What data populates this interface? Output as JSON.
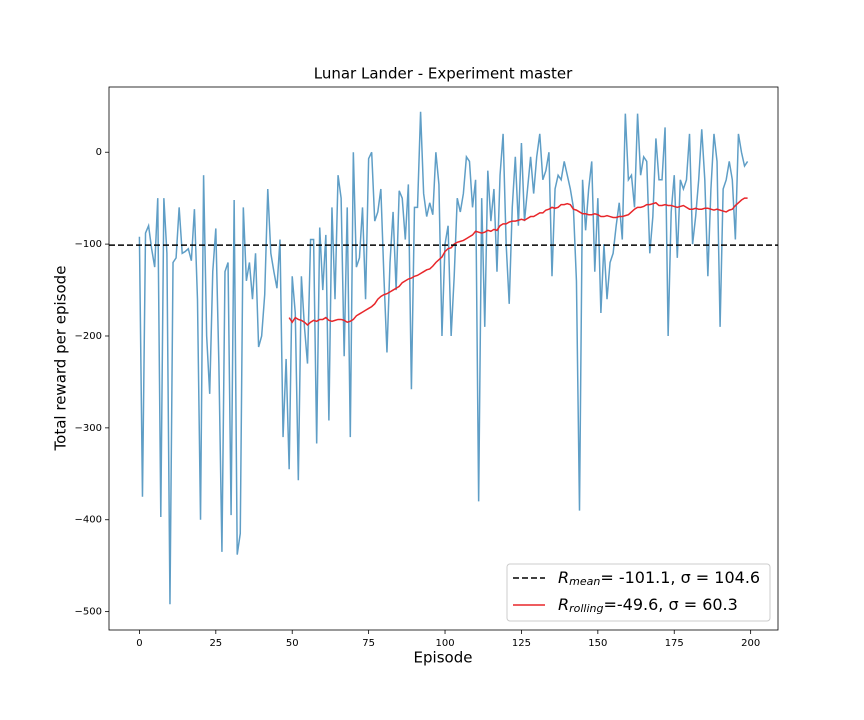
{
  "chart_data": {
    "type": "line",
    "title": "Lunar Lander - Experiment  master",
    "xlabel": "Episode",
    "ylabel": "Total reward per episode",
    "x": [
      0,
      1,
      2,
      3,
      4,
      5,
      6,
      7,
      8,
      9,
      10,
      11,
      12,
      13,
      14,
      15,
      16,
      17,
      18,
      19,
      20,
      21,
      22,
      23,
      24,
      25,
      26,
      27,
      28,
      29,
      30,
      31,
      32,
      33,
      34,
      35,
      36,
      37,
      38,
      39,
      40,
      41,
      42,
      43,
      44,
      45,
      46,
      47,
      48,
      49,
      50,
      51,
      52,
      53,
      54,
      55,
      56,
      57,
      58,
      59,
      60,
      61,
      62,
      63,
      64,
      65,
      66,
      67,
      68,
      69,
      70,
      71,
      72,
      73,
      74,
      75,
      76,
      77,
      78,
      79,
      80,
      81,
      82,
      83,
      84,
      85,
      86,
      87,
      88,
      89,
      90,
      91,
      92,
      93,
      94,
      95,
      96,
      97,
      98,
      99,
      100,
      101,
      102,
      103,
      104,
      105,
      106,
      107,
      108,
      109,
      110,
      111,
      112,
      113,
      114,
      115,
      116,
      117,
      118,
      119,
      120,
      121,
      122,
      123,
      124,
      125,
      126,
      127,
      128,
      129,
      130,
      131,
      132,
      133,
      134,
      135,
      136,
      137,
      138,
      139,
      140,
      141,
      142,
      143,
      144,
      145,
      146,
      147,
      148,
      149,
      150,
      151,
      152,
      153,
      154,
      155,
      156,
      157,
      158,
      159,
      160,
      161,
      162,
      163,
      164,
      165,
      166,
      167,
      168,
      169,
      170,
      171,
      172,
      173,
      174,
      175,
      176,
      177,
      178,
      179,
      180,
      181,
      182,
      183,
      184,
      185,
      186,
      187,
      188,
      189,
      190,
      191,
      192,
      193,
      194,
      195,
      196,
      197,
      198,
      199
    ],
    "series": [
      {
        "color": "#5f9ec6",
        "values": [
          -92,
          -375,
          -88,
          -80,
          -105,
          -125,
          -50,
          -397,
          -50,
          -110,
          -492,
          -120,
          -115,
          -60,
          -110,
          -108,
          -105,
          -118,
          -62,
          -160,
          -400,
          -25,
          -200,
          -263,
          -130,
          -83,
          -230,
          -435,
          -130,
          -120,
          -395,
          -52,
          -438,
          -415,
          -60,
          -140,
          -120,
          -160,
          -110,
          -212,
          -200,
          -155,
          -40,
          -110,
          -130,
          -148,
          -95,
          -310,
          -225,
          -345,
          -135,
          -175,
          -357,
          -135,
          -190,
          -230,
          -95,
          -95,
          -317,
          -82,
          -150,
          -90,
          -292,
          -60,
          -160,
          -25,
          -50,
          -222,
          -60,
          -310,
          0,
          -125,
          -115,
          -60,
          -160,
          -7,
          0,
          -75,
          -65,
          -40,
          -135,
          -218,
          -120,
          -65,
          -150,
          -42,
          -50,
          -95,
          -35,
          -258,
          -60,
          -60,
          44,
          -45,
          -70,
          -55,
          -68,
          0,
          -35,
          -200,
          -100,
          -80,
          -200,
          -135,
          -50,
          -65,
          -45,
          -5,
          -10,
          -60,
          -30,
          -380,
          -50,
          -190,
          -20,
          -75,
          -40,
          -130,
          -25,
          20,
          -100,
          -165,
          -60,
          -5,
          -80,
          10,
          -75,
          -40,
          -5,
          -45,
          -5,
          20,
          -30,
          -20,
          0,
          -135,
          -40,
          -25,
          -30,
          -10,
          -25,
          -40,
          -60,
          -140,
          -390,
          -30,
          -85,
          -40,
          -10,
          -130,
          -50,
          -175,
          -100,
          -160,
          -120,
          -110,
          -80,
          -55,
          -95,
          42,
          -30,
          -25,
          -60,
          42,
          -25,
          -5,
          -10,
          -110,
          -70,
          15,
          -30,
          -30,
          27,
          -200,
          -65,
          -25,
          -115,
          -30,
          -40,
          -30,
          20,
          -100,
          -70,
          -30,
          25,
          -30,
          -135,
          -40,
          20,
          -10,
          -190,
          -40,
          -30,
          -10,
          -30,
          -95,
          20,
          0,
          -15,
          -10
        ]
      },
      {
        "name": "R",
        "name_sub": "rolling",
        "name_rest": "=-49.6, σ = 60.3",
        "color": "#e8262a",
        "values": [
          null,
          null,
          null,
          null,
          null,
          null,
          null,
          null,
          null,
          null,
          null,
          null,
          null,
          null,
          null,
          null,
          null,
          null,
          null,
          null,
          null,
          null,
          null,
          null,
          null,
          null,
          null,
          null,
          null,
          null,
          null,
          null,
          null,
          null,
          null,
          null,
          null,
          null,
          null,
          null,
          null,
          null,
          null,
          null,
          null,
          null,
          null,
          null,
          null,
          -180,
          -185,
          -180,
          -182,
          -183,
          -185,
          -188,
          -185,
          -183,
          -184,
          -182,
          -182,
          -180,
          -183,
          -184,
          -183,
          -182,
          -182,
          -183,
          -185,
          -184,
          -182,
          -178,
          -176,
          -174,
          -172,
          -170,
          -168,
          -165,
          -160,
          -157,
          -155,
          -154,
          -152,
          -150,
          -148,
          -146,
          -142,
          -140,
          -138,
          -137,
          -135,
          -134,
          -132,
          -130,
          -128,
          -127,
          -124,
          -120,
          -117,
          -114,
          -108,
          -105,
          -104,
          -100,
          -98,
          -97,
          -96,
          -94,
          -92,
          -90,
          -86,
          -87,
          -88,
          -87,
          -85,
          -86,
          -84,
          -85,
          -80,
          -78,
          -78,
          -76,
          -75,
          -75,
          -74,
          -73,
          -74,
          -72,
          -70,
          -70,
          -68,
          -66,
          -66,
          -63,
          -62,
          -60,
          -61,
          -60,
          -57,
          -57,
          -56,
          -57,
          -62,
          -63,
          -65,
          -67,
          -67,
          -68,
          -68,
          -67,
          -68,
          -70,
          -70,
          -69,
          -70,
          -71,
          -71,
          -70,
          -70,
          -69,
          -68,
          -65,
          -62,
          -60,
          -60,
          -59,
          -57,
          -57,
          -56,
          -55,
          -58,
          -58,
          -57,
          -58,
          -58,
          -59,
          -60,
          -59,
          -58,
          -60,
          -62,
          -62,
          -61,
          -62,
          -62,
          -61,
          -61,
          -62,
          -63,
          -62,
          -63,
          -64,
          -65,
          -63,
          -62,
          -58,
          -55,
          -52,
          -50,
          -50
        ]
      }
    ],
    "hline": {
      "name": "R",
      "name_sub": "mean",
      "name_rest": "=  -101.1, σ = 104.6",
      "color": "#000000",
      "style": "dashed",
      "value": -101.1
    },
    "xlim": [
      -9.95,
      208.95
    ],
    "ylim": [
      -520,
      71
    ],
    "xticks": [
      0,
      25,
      50,
      75,
      100,
      125,
      150,
      175,
      200
    ],
    "yticks": [
      {
        "value": 0,
        "label": "0"
      },
      {
        "value": -100,
        "label": "−100"
      },
      {
        "value": -200,
        "label": "−200"
      },
      {
        "value": -300,
        "label": "−300"
      },
      {
        "value": -400,
        "label": "−400"
      },
      {
        "value": -500,
        "label": "−500"
      }
    ],
    "legend": "lower right"
  }
}
